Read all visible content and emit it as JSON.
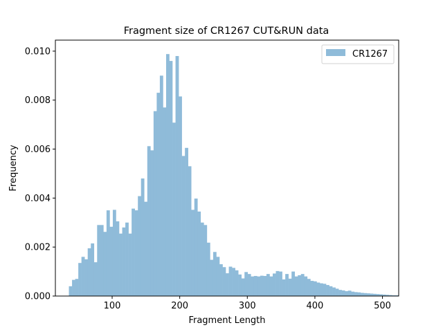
{
  "chart_data": {
    "type": "bar",
    "title": "Fragment size of CR1267 CUT&RUN data",
    "xlabel": "Fragment Length",
    "ylabel": "Frequency",
    "xlim": [
      16,
      524
    ],
    "ylim": [
      0,
      0.01045
    ],
    "xticks": [
      {
        "value": 100,
        "label": "100"
      },
      {
        "value": 200,
        "label": "200"
      },
      {
        "value": 300,
        "label": "300"
      },
      {
        "value": 400,
        "label": "400"
      },
      {
        "value": 500,
        "label": "500"
      }
    ],
    "yticks": [
      {
        "value": 0.0,
        "label": "0.000"
      },
      {
        "value": 0.002,
        "label": "0.002"
      },
      {
        "value": 0.004,
        "label": "0.004"
      },
      {
        "value": 0.006,
        "label": "0.006"
      },
      {
        "value": 0.008,
        "label": "0.008"
      },
      {
        "value": 0.01,
        "label": "0.010"
      }
    ],
    "legend_position": "top-right",
    "colors": {
      "bar": "#8fbbd9"
    },
    "series": [
      {
        "name": "CR1267",
        "bin_start": 36,
        "bin_width": 4.64,
        "values": [
          0.0004,
          0.00066,
          0.0007,
          0.00135,
          0.0016,
          0.0015,
          0.00195,
          0.00215,
          0.00138,
          0.0029,
          0.0029,
          0.00262,
          0.0035,
          0.00283,
          0.00352,
          0.00305,
          0.00255,
          0.0028,
          0.003,
          0.00255,
          0.00357,
          0.0035,
          0.00408,
          0.0048,
          0.00385,
          0.00612,
          0.00595,
          0.00755,
          0.0083,
          0.009,
          0.0077,
          0.00988,
          0.0096,
          0.00708,
          0.0098,
          0.00815,
          0.00572,
          0.00605,
          0.0053,
          0.00352,
          0.00398,
          0.00345,
          0.003,
          0.0029,
          0.00218,
          0.00148,
          0.0018,
          0.0016,
          0.0013,
          0.00118,
          0.00093,
          0.0012,
          0.00115,
          0.00105,
          0.00088,
          0.00072,
          0.00098,
          0.0009,
          0.0008,
          0.00082,
          0.0008,
          0.00083,
          0.00082,
          0.0009,
          0.0008,
          0.00092,
          0.00102,
          0.001,
          0.00068,
          0.0009,
          0.00071,
          0.001,
          0.0008,
          0.00085,
          0.0009,
          0.0008,
          0.0007,
          0.00062,
          0.0006,
          0.00055,
          0.00052,
          0.0005,
          0.00045,
          0.0004,
          0.00035,
          0.0003,
          0.00025,
          0.00023,
          0.0002,
          0.00022,
          0.00018,
          0.00016,
          0.00015,
          0.00013,
          0.00012,
          0.00011,
          0.0001,
          9e-05,
          8e-05,
          7e-05,
          6e-05,
          5e-05,
          4e-05,
          3e-05,
          3e-05
        ]
      }
    ]
  }
}
